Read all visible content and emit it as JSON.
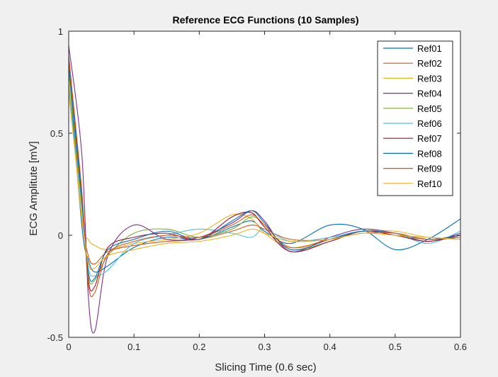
{
  "figure_background": "#f0f0f0",
  "chart_data": {
    "type": "line",
    "title": "Reference ECG Functions (10 Samples)",
    "xlabel": "Slicing Time (0.6 sec)",
    "ylabel": "ECG Amplitute [mV]",
    "xlim": [
      0,
      0.6
    ],
    "ylim": [
      -0.5,
      1
    ],
    "xticks": [
      0,
      0.1,
      0.2,
      0.3,
      0.4,
      0.5,
      0.6
    ],
    "xtick_labels": [
      "0",
      "0.1",
      "0.2",
      "0.3",
      "0.4",
      "0.5",
      "0.6"
    ],
    "yticks": [
      -0.5,
      0,
      0.5,
      1
    ],
    "ytick_labels": [
      "-0.5",
      "0",
      "0.5",
      "1"
    ],
    "grid": false,
    "legend_position": "top-right",
    "x": [
      0,
      0.02,
      0.03,
      0.04,
      0.06,
      0.1,
      0.15,
      0.2,
      0.25,
      0.28,
      0.3,
      0.34,
      0.4,
      0.45,
      0.5,
      0.55,
      0.6
    ],
    "series": [
      {
        "name": "Ref01",
        "color": "#0072bd",
        "values": [
          0.82,
          0.05,
          -0.12,
          -0.18,
          -0.15,
          -0.06,
          -0.01,
          -0.02,
          0.04,
          0.07,
          0.02,
          -0.04,
          0.05,
          0.03,
          -0.07,
          -0.02,
          0.08
        ]
      },
      {
        "name": "Ref02",
        "color": "#d95319",
        "values": [
          0.85,
          0.1,
          -0.1,
          -0.14,
          -0.08,
          -0.05,
          -0.03,
          -0.02,
          0.02,
          0.05,
          0.03,
          -0.02,
          -0.02,
          0.02,
          0.01,
          -0.02,
          0.0
        ]
      },
      {
        "name": "Ref03",
        "color": "#edb120",
        "values": [
          0.75,
          0.08,
          -0.02,
          -0.05,
          -0.07,
          -0.04,
          -0.02,
          0.01,
          0.1,
          0.08,
          0.01,
          -0.06,
          -0.02,
          0.02,
          0.02,
          -0.01,
          -0.02
        ]
      },
      {
        "name": "Ref04",
        "color": "#7e2f8e",
        "values": [
          0.93,
          0.4,
          -0.3,
          -0.47,
          -0.1,
          0.05,
          -0.02,
          -0.01,
          0.06,
          0.12,
          0.07,
          -0.08,
          -0.01,
          0.03,
          0.01,
          -0.03,
          0.01
        ]
      },
      {
        "name": "Ref05",
        "color": "#77ac30",
        "values": [
          0.8,
          0.15,
          -0.2,
          -0.22,
          -0.1,
          0.01,
          0.03,
          -0.01,
          0.03,
          0.09,
          0.05,
          -0.07,
          -0.03,
          0.02,
          0.0,
          -0.02,
          -0.01
        ]
      },
      {
        "name": "Ref06",
        "color": "#4dbeee",
        "values": [
          0.72,
          0.12,
          -0.16,
          -0.2,
          -0.17,
          -0.04,
          0.0,
          0.03,
          0.01,
          -0.01,
          0.03,
          -0.03,
          -0.01,
          0.02,
          0.01,
          -0.04,
          0.02
        ]
      },
      {
        "name": "Ref07",
        "color": "#a2142f",
        "values": [
          0.88,
          0.2,
          -0.22,
          -0.25,
          -0.06,
          -0.01,
          0.01,
          -0.02,
          0.09,
          0.11,
          0.04,
          -0.08,
          -0.03,
          0.02,
          0.0,
          -0.03,
          0.0
        ]
      },
      {
        "name": "Ref08",
        "color": "#0072bd",
        "values": [
          0.84,
          0.18,
          -0.18,
          -0.21,
          -0.07,
          -0.02,
          0.02,
          -0.02,
          0.07,
          0.12,
          0.06,
          -0.07,
          -0.02,
          0.02,
          0.01,
          -0.02,
          0.0
        ]
      },
      {
        "name": "Ref09",
        "color": "#d95319",
        "values": [
          0.87,
          0.22,
          -0.24,
          -0.28,
          -0.09,
          -0.03,
          0.0,
          -0.01,
          0.05,
          0.1,
          0.05,
          -0.06,
          -0.02,
          0.01,
          0.01,
          -0.02,
          -0.01
        ]
      },
      {
        "name": "Ref10",
        "color": "#edb120",
        "values": [
          0.7,
          0.1,
          -0.14,
          -0.16,
          -0.1,
          -0.07,
          -0.04,
          -0.03,
          0.0,
          0.03,
          0.01,
          -0.03,
          -0.02,
          0.01,
          0.0,
          -0.01,
          -0.02
        ]
      }
    ]
  }
}
